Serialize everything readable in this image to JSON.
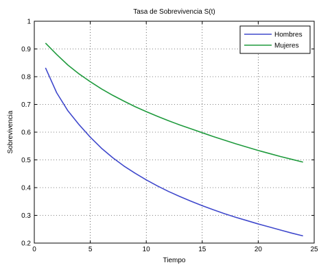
{
  "chart_data": {
    "type": "line",
    "title": "Tasa de Sobrevivencia S(t)",
    "xlabel": "Tiempo",
    "ylabel": "Sobrevivencia",
    "xlim": [
      0,
      25
    ],
    "ylim": [
      0.2,
      1
    ],
    "xticks": [
      "0",
      "5",
      "10",
      "15",
      "20",
      "25"
    ],
    "yticks": [
      "0.2",
      "0.3",
      "0.4",
      "0.5",
      "0.6",
      "0.7",
      "0.8",
      "0.9",
      "1"
    ],
    "grid": true,
    "legend_position": "top-right",
    "x": [
      1,
      2,
      3,
      4,
      5,
      6,
      7,
      8,
      9,
      10,
      11,
      12,
      13,
      14,
      15,
      16,
      17,
      18,
      19,
      20,
      21,
      22,
      23,
      24
    ],
    "series": [
      {
        "name": "Hombres",
        "color": "#3f48cc",
        "values": [
          0.832,
          0.742,
          0.677,
          0.627,
          0.582,
          0.542,
          0.508,
          0.478,
          0.452,
          0.428,
          0.406,
          0.386,
          0.368,
          0.351,
          0.335,
          0.32,
          0.306,
          0.293,
          0.281,
          0.269,
          0.258,
          0.247,
          0.236,
          0.226
        ]
      },
      {
        "name": "Mujeres",
        "color": "#1e9a3c",
        "values": [
          0.921,
          0.88,
          0.842,
          0.81,
          0.782,
          0.756,
          0.733,
          0.712,
          0.692,
          0.674,
          0.657,
          0.641,
          0.626,
          0.612,
          0.598,
          0.584,
          0.571,
          0.558,
          0.546,
          0.534,
          0.523,
          0.512,
          0.502,
          0.492
        ]
      }
    ]
  }
}
